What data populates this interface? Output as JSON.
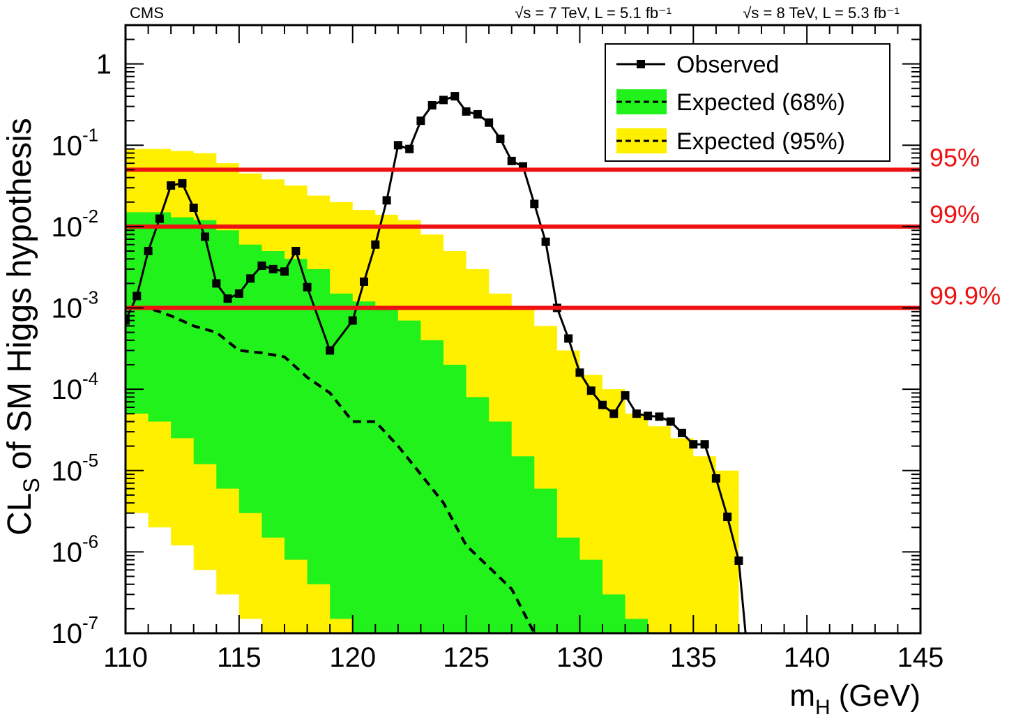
{
  "chart_data": {
    "type": "line",
    "title": "",
    "experiment_label": "CMS",
    "energy_lumi_7": "√s = 7 TeV, L = 5.1 fb⁻¹",
    "energy_lumi_8": "√s = 8 TeV, L = 5.3 fb⁻¹",
    "xlabel": "m",
    "xlabel_sub": "H",
    "xlabel_unit": "(GeV)",
    "ylabel_prefix": "CL",
    "ylabel_sub": "S",
    "ylabel_rest": "of SM Higgs hypothesis",
    "xlim": [
      110,
      145
    ],
    "ylim": [
      1e-07,
      3
    ],
    "yscale": "log",
    "grid": false,
    "legend_position": "top-right",
    "x_ticks": [
      110,
      115,
      120,
      125,
      130,
      135,
      140,
      145
    ],
    "x_tick_labels": [
      "110",
      "115",
      "120",
      "125",
      "130",
      "135",
      "140",
      "145"
    ],
    "y_ticks": [
      {
        "value": 1,
        "base": "1",
        "exp": ""
      },
      {
        "value": 0.1,
        "base": "10",
        "exp": "-1"
      },
      {
        "value": 0.01,
        "base": "10",
        "exp": "-2"
      },
      {
        "value": 0.001,
        "base": "10",
        "exp": "-3"
      },
      {
        "value": 0.0001,
        "base": "10",
        "exp": "-4"
      },
      {
        "value": 1e-05,
        "base": "10",
        "exp": "-5"
      },
      {
        "value": 1e-06,
        "base": "10",
        "exp": "-6"
      },
      {
        "value": 1e-07,
        "base": "10",
        "exp": "-7"
      }
    ],
    "reference_lines": [
      {
        "value": 0.05,
        "label": "95%"
      },
      {
        "value": 0.01,
        "label": "99%"
      },
      {
        "value": 0.001,
        "label": "99.9%"
      }
    ],
    "legend": [
      {
        "label": "Observed",
        "style": "observed"
      },
      {
        "label": "Expected (68%)",
        "style": "band68"
      },
      {
        "label": "Expected (95%)",
        "style": "band95"
      }
    ],
    "colors": {
      "observed": "#000000",
      "band68": "#22f21c",
      "band95": "#fff000",
      "reference": "#ee1111"
    },
    "series": [
      {
        "name": "Observed",
        "x": [
          110,
          110.5,
          111,
          111.5,
          112,
          112.5,
          113,
          113.5,
          114,
          114.5,
          115,
          115.5,
          116,
          116.5,
          117,
          117.5,
          118,
          119,
          120,
          120.5,
          121,
          121.5,
          122,
          122.5,
          123,
          123.5,
          124,
          124.5,
          125,
          125.5,
          126,
          126.5,
          127,
          127.5,
          128,
          128.5,
          129,
          129.5,
          130,
          130.5,
          131,
          131.5,
          132,
          132.5,
          133,
          133.5,
          134,
          134.5,
          135,
          135.5,
          136,
          136.5,
          137,
          137.3
        ],
        "y": [
          0.0007,
          0.0014,
          0.005,
          0.0125,
          0.032,
          0.034,
          0.017,
          0.0075,
          0.002,
          0.0013,
          0.0015,
          0.0023,
          0.0033,
          0.003,
          0.0028,
          0.005,
          0.0018,
          0.0003,
          0.0007,
          0.0021,
          0.006,
          0.021,
          0.1,
          0.09,
          0.2,
          0.31,
          0.36,
          0.4,
          0.26,
          0.24,
          0.19,
          0.12,
          0.064,
          0.055,
          0.019,
          0.0065,
          0.001,
          0.00042,
          0.00016,
          9.6e-05,
          6.4e-05,
          5e-05,
          8.4e-05,
          5e-05,
          4.7e-05,
          4.6e-05,
          4e-05,
          2.9e-05,
          2.1e-05,
          2.1e-05,
          8e-06,
          2.7e-06,
          7.8e-07,
          1e-07
        ]
      },
      {
        "name": "Expected (68%)",
        "x": [
          110,
          111,
          112,
          113,
          114,
          115,
          116,
          117,
          118,
          119,
          120,
          121,
          122,
          123,
          124,
          125,
          126,
          127,
          128,
          129,
          130,
          131,
          132,
          133,
          134,
          135,
          136,
          137
        ],
        "y": [
          0.001,
          0.001,
          0.0008,
          0.0006,
          0.0005,
          0.0003,
          0.00028,
          0.00025,
          0.00014,
          9e-05,
          4e-05,
          4e-05,
          2e-05,
          9e-06,
          4e-06,
          1.2e-06,
          6.5e-07,
          3.5e-07,
          1e-07,
          5e-08,
          null,
          null,
          null,
          null,
          null,
          null,
          null,
          null
        ],
        "band68_low": [
          5e-05,
          4e-05,
          2.5e-05,
          1.2e-05,
          6e-06,
          3e-06,
          1.5e-06,
          8e-07,
          4e-07,
          1.5e-07,
          8e-08,
          4e-08,
          null,
          null,
          null,
          null,
          null,
          null,
          null,
          null,
          null,
          null,
          null,
          null,
          null,
          null,
          null,
          null
        ],
        "band68_high": [
          0.015,
          0.015,
          0.013,
          0.012,
          0.009,
          0.006,
          0.005,
          0.004,
          0.003,
          0.0015,
          0.0012,
          0.001,
          0.0007,
          0.0004,
          0.0002,
          8e-05,
          4e-05,
          1.5e-05,
          6e-06,
          1.5e-06,
          8e-07,
          3e-07,
          1.5e-07,
          8e-08,
          4e-08,
          null,
          null,
          null
        ],
        "band95_low": [
          3e-06,
          2e-06,
          1.2e-06,
          6e-07,
          3e-07,
          1.5e-07,
          8e-08,
          4e-08,
          null,
          null,
          null,
          null,
          null,
          null,
          null,
          null,
          null,
          null,
          null,
          null,
          null,
          null,
          null,
          null,
          null,
          null,
          null,
          null
        ],
        "band95_high": [
          0.09,
          0.09,
          0.085,
          0.08,
          0.06,
          0.045,
          0.038,
          0.032,
          0.024,
          0.02,
          0.016,
          0.014,
          0.012,
          0.008,
          0.005,
          0.003,
          0.0015,
          0.001,
          0.0006,
          0.0003,
          0.00015,
          0.0001,
          5e-05,
          3.5e-05,
          2.5e-05,
          1.5e-05,
          1e-05,
          6e-06
        ]
      }
    ]
  }
}
